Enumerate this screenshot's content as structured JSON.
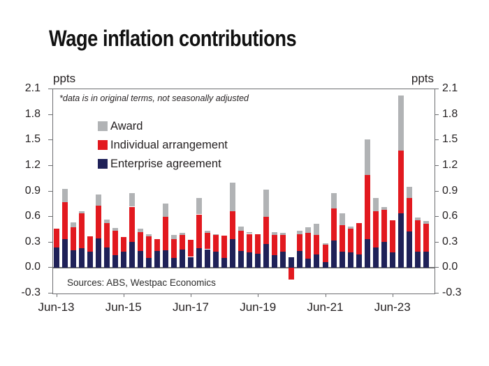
{
  "title": "Wage inflation contributions",
  "annotation": "*data is in original terms, not seasonally adjusted",
  "source": "Sources: ABS, Westpac Economics",
  "axes": {
    "left_unit": "ppts",
    "right_unit": "ppts",
    "y_tick_labels": [
      "2.1",
      "1.8",
      "1.5",
      "1.2",
      "0.9",
      "0.6",
      "0.3",
      "0.0",
      "-0.3"
    ],
    "x_ticks": [
      "Jun-13",
      "Jun-15",
      "Jun-17",
      "Jun-19",
      "Jun-21",
      "Jun-23"
    ],
    "x_tick_indices": [
      0,
      8,
      16,
      24,
      32,
      40
    ]
  },
  "legend": [
    {
      "label": "Award",
      "color": "#b1b3b5"
    },
    {
      "label": "Individual arrangement",
      "color": "#e2191f"
    },
    {
      "label": "Enterprise agreement",
      "color": "#1f2158"
    }
  ],
  "chart_data": {
    "type": "bar",
    "stacked": true,
    "title": "Wage inflation contributions",
    "ylabel": "ppts",
    "ylim": [
      -0.3,
      2.1
    ],
    "y_step": 0.3,
    "grid": false,
    "legend_position": "top-left-inside",
    "categories": [
      "Jun-13",
      "Sep-13",
      "Dec-13",
      "Mar-14",
      "Jun-14",
      "Sep-14",
      "Dec-14",
      "Mar-15",
      "Jun-15",
      "Sep-15",
      "Dec-15",
      "Mar-16",
      "Jun-16",
      "Sep-16",
      "Dec-16",
      "Mar-17",
      "Jun-17",
      "Sep-17",
      "Dec-17",
      "Mar-18",
      "Jun-18",
      "Sep-18",
      "Dec-18",
      "Mar-19",
      "Jun-19",
      "Sep-19",
      "Dec-19",
      "Mar-20",
      "Jun-20",
      "Sep-20",
      "Dec-20",
      "Mar-21",
      "Jun-21",
      "Sep-21",
      "Dec-21",
      "Mar-22",
      "Jun-22",
      "Sep-22",
      "Dec-22",
      "Mar-23",
      "Jun-23",
      "Sep-23",
      "Dec-23",
      "Mar-24",
      "Jun-24"
    ],
    "series": [
      {
        "key": "enterprise",
        "name": "Enterprise agreement",
        "color": "#1f2158",
        "values": [
          0.24,
          0.34,
          0.21,
          0.23,
          0.19,
          0.35,
          0.24,
          0.15,
          0.19,
          0.31,
          0.2,
          0.12,
          0.2,
          0.21,
          0.12,
          0.22,
          0.13,
          0.23,
          0.22,
          0.19,
          0.12,
          0.34,
          0.2,
          0.18,
          0.17,
          0.28,
          0.15,
          0.19,
          0.13,
          0.2,
          0.11,
          0.16,
          0.07,
          0.32,
          0.19,
          0.18,
          0.16,
          0.34,
          0.24,
          0.31,
          0.18,
          0.64,
          0.43,
          0.19,
          0.19
        ]
      },
      {
        "key": "individual",
        "name": "Individual arrangement",
        "color": "#e2191f",
        "values": [
          0.22,
          0.43,
          0.27,
          0.41,
          0.18,
          0.38,
          0.29,
          0.29,
          0.17,
          0.41,
          0.22,
          0.25,
          0.14,
          0.39,
          0.22,
          0.17,
          0.2,
          0.4,
          0.19,
          0.2,
          0.26,
          0.33,
          0.24,
          0.22,
          0.23,
          0.32,
          0.24,
          0.2,
          -0.14,
          0.2,
          0.3,
          0.23,
          0.2,
          0.38,
          0.31,
          0.28,
          0.37,
          0.75,
          0.43,
          0.37,
          0.38,
          0.74,
          0.39,
          0.37,
          0.33
        ]
      },
      {
        "key": "award",
        "name": "Award",
        "color": "#b1b3b5",
        "values": [
          0,
          0.16,
          0.06,
          0.03,
          0,
          0.13,
          0.04,
          0.03,
          0,
          0.16,
          0.04,
          0.03,
          0,
          0.16,
          0.05,
          0.02,
          0,
          0.19,
          0.03,
          0.01,
          0,
          0.33,
          0.05,
          0.02,
          0,
          0.32,
          0.03,
          0.02,
          0,
          0.04,
          0.07,
          0.13,
          0.02,
          0.18,
          0.14,
          0.03,
          0,
          0.42,
          0.15,
          0.04,
          0,
          0.65,
          0.13,
          0.03,
          0.03
        ]
      }
    ]
  }
}
